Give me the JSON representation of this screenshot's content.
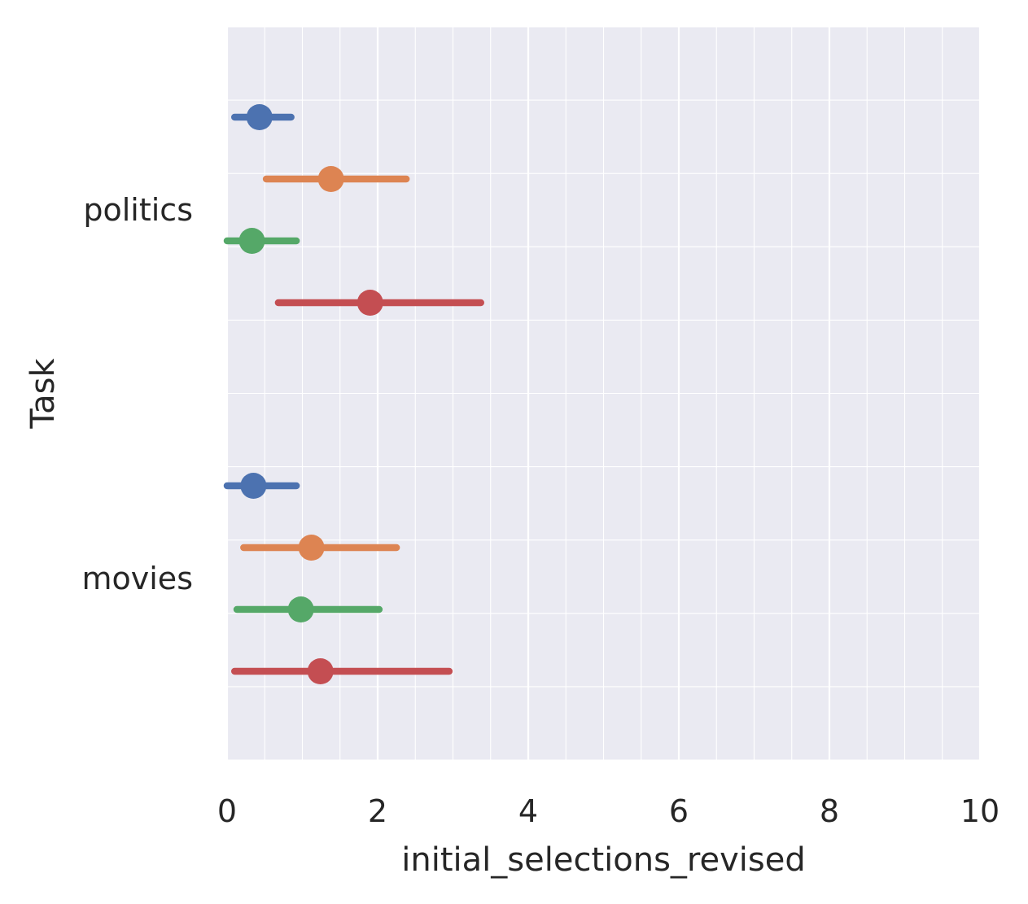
{
  "chart_data": {
    "type": "pointplot",
    "orientation": "horizontal",
    "xlabel": "initial_selections_revised",
    "ylabel": "Task",
    "xlim": [
      0,
      10
    ],
    "x_ticks": [
      "0",
      "2",
      "4",
      "6",
      "8",
      "10"
    ],
    "categories": [
      "politics",
      "movies"
    ],
    "grid": true,
    "background": "#eaeaf2",
    "series": [
      {
        "color": "#4c72b0",
        "points": [
          {
            "category": "politics",
            "x": 0.43,
            "ci": [
              0.1,
              0.85
            ]
          },
          {
            "category": "movies",
            "x": 0.35,
            "ci": [
              0.0,
              0.92
            ]
          }
        ]
      },
      {
        "color": "#dd8452",
        "points": [
          {
            "category": "politics",
            "x": 1.38,
            "ci": [
              0.52,
              2.38
            ]
          },
          {
            "category": "movies",
            "x": 1.12,
            "ci": [
              0.22,
              2.25
            ]
          }
        ]
      },
      {
        "color": "#55a868",
        "points": [
          {
            "category": "politics",
            "x": 0.33,
            "ci": [
              0.0,
              0.92
            ]
          },
          {
            "category": "movies",
            "x": 0.98,
            "ci": [
              0.13,
              2.02
            ]
          }
        ]
      },
      {
        "color": "#c44e52",
        "points": [
          {
            "category": "politics",
            "x": 1.9,
            "ci": [
              0.68,
              3.37
            ]
          },
          {
            "category": "movies",
            "x": 1.24,
            "ci": [
              0.1,
              2.95
            ]
          }
        ]
      }
    ]
  }
}
